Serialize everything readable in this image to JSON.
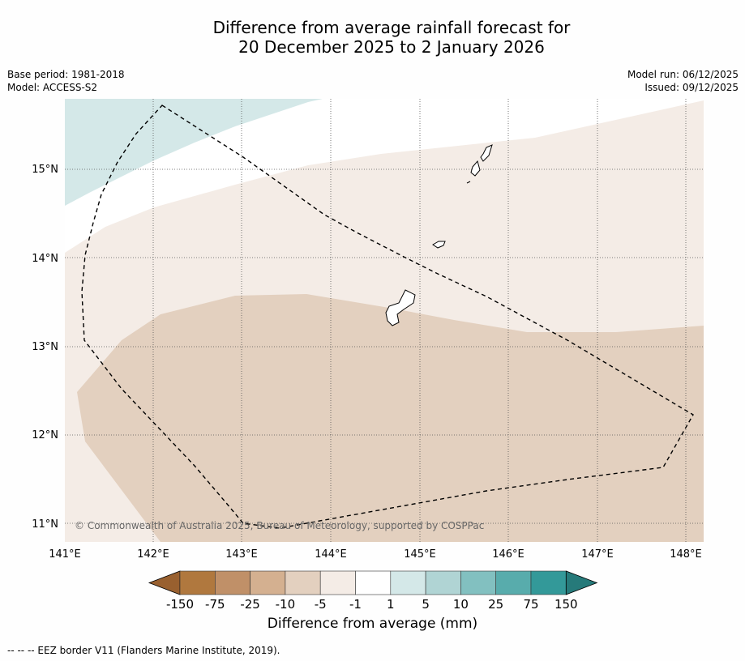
{
  "title": {
    "line1": "Difference from average rainfall forecast for",
    "line2": "20 December 2025 to 2 January 2026"
  },
  "meta_left": {
    "base_period": "Base period: 1981-2018",
    "model": "Model: ACCESS-S2"
  },
  "meta_right": {
    "model_run": "Model run: 06/12/2025",
    "issued": "Issued: 09/12/2025"
  },
  "map": {
    "lon_labels": [
      "141°E",
      "142°E",
      "143°E",
      "144°E",
      "145°E",
      "146°E",
      "147°E",
      "148°E"
    ],
    "lat_labels": [
      "15°N",
      "14°N",
      "13°N",
      "12°N",
      "11°N"
    ],
    "copyright": "© Commonwealth of Australia 2025, Bureau of Meteorology, supported by COSPPac"
  },
  "colorbar": {
    "tick_labels": [
      "-150",
      "-75",
      "-25",
      "-10",
      "-5",
      "-1",
      "1",
      "5",
      "10",
      "25",
      "75",
      "150"
    ],
    "colors": [
      "#99602f",
      "#b0783e",
      "#c09068",
      "#d4b090",
      "#e3d0bf",
      "#f4ece6",
      "#ffffff",
      "#d4e8e8",
      "#b0d4d4",
      "#82c0c0",
      "#58acac",
      "#339999",
      "#267a7a"
    ],
    "label": "Difference from average (mm)"
  },
  "footer": "--  --  -- EEZ border V11 (Flanders Marine Institute, 2019)."
}
